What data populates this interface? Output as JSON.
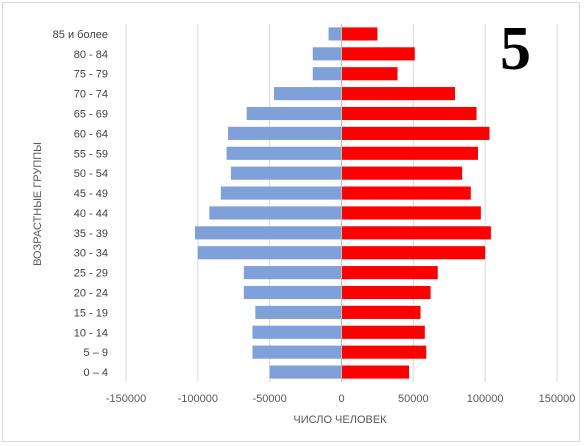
{
  "badge": "5",
  "chart_data": {
    "type": "bar",
    "orientation": "horizontal",
    "ylabel": "ВОЗРАСТНЫЕ ГРУППЫ",
    "xlabel": "ЧИСЛО ЧЕЛОВЕК",
    "categories": [
      "0 – 4",
      "5 – 9",
      "10 - 14",
      "15 - 19",
      "20 - 24",
      "25 - 29",
      "30 - 34",
      "35 - 39",
      "40 - 44",
      "45 - 49",
      "50 - 54",
      "55 - 59",
      "60 - 64",
      "65 - 69",
      "70 - 74",
      "75 - 79",
      "80 - 84",
      "85 и более"
    ],
    "series": [
      {
        "color": "#7fa0d8",
        "values": [
          -50000,
          -62000,
          -62000,
          -60000,
          -68000,
          -68000,
          -100000,
          -102000,
          -92000,
          -84000,
          -77000,
          -80000,
          -79000,
          -66000,
          -47000,
          -20000,
          -20000,
          -9000
        ]
      },
      {
        "color": "#ff0000",
        "values": [
          47000,
          59000,
          58000,
          55000,
          62000,
          67000,
          100000,
          104000,
          97000,
          90000,
          84000,
          95000,
          103000,
          94000,
          79000,
          39000,
          51000,
          25000
        ]
      }
    ],
    "xlim": [
      -150000,
      150000
    ],
    "xticks": [
      -150000,
      -100000,
      -50000,
      0,
      50000,
      100000,
      150000
    ],
    "xtick_labels": [
      "-150000",
      "-100000",
      "-50000",
      "0",
      "50000",
      "100000",
      "150000"
    ],
    "grid": true,
    "legend": "none"
  }
}
